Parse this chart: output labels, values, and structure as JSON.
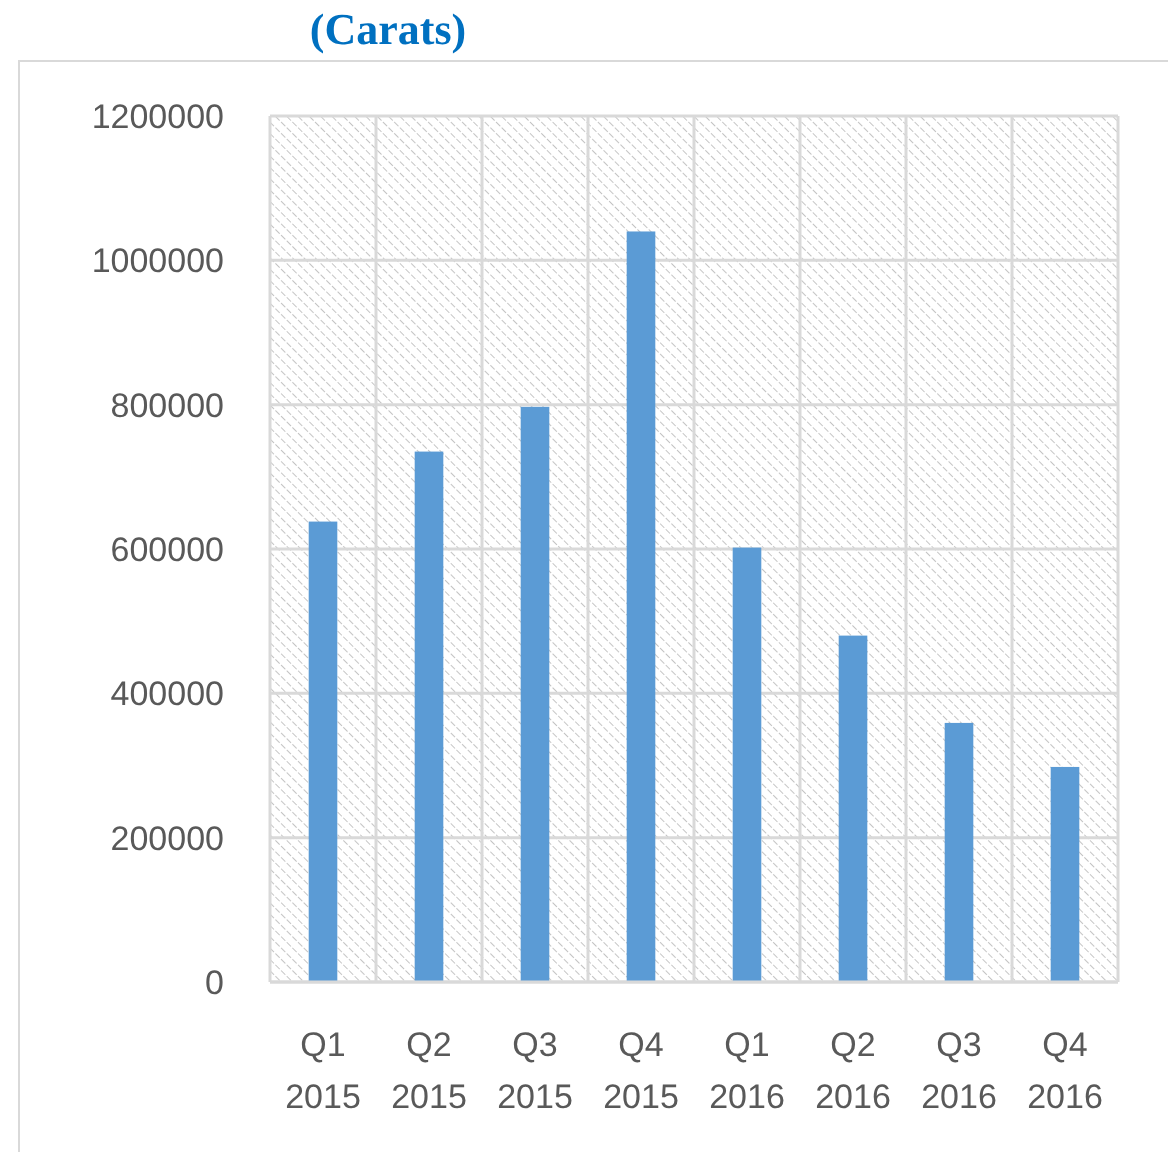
{
  "chart_data": {
    "type": "bar",
    "title": "(Carats)",
    "categories": [
      "Q1 2015",
      "Q2 2015",
      "Q3 2015",
      "Q4 2015",
      "Q1 2016",
      "Q2 2016",
      "Q3 2016",
      "Q4 2016"
    ],
    "values": [
      638000,
      735000,
      797000,
      1040000,
      602000,
      480000,
      359000,
      298000
    ],
    "color": "#5b9bd5",
    "ylim": [
      0,
      1200000
    ],
    "yticks": [
      0,
      200000,
      400000,
      600000,
      800000,
      1000000,
      1200000
    ],
    "grid": true
  }
}
